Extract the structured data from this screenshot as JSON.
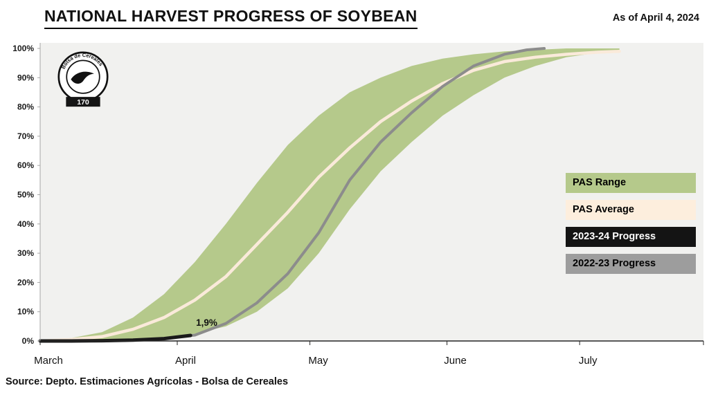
{
  "header": {
    "title": "NATIONAL HARVEST PROGRESS OF SOYBEAN",
    "as_of": "As of April 4, 2024"
  },
  "footer": {
    "source": "Source: Depto. Estimaciones Agrícolas - Bolsa de Cereales"
  },
  "logo": {
    "org": "Bolsa de Cereales",
    "anniversary": "170"
  },
  "chart_data": {
    "type": "line",
    "title": "NATIONAL HARVEST PROGRESS OF SOYBEAN",
    "x_axis": {
      "unit": "days_from_march_1",
      "range": [
        0,
        150
      ],
      "ticks": [
        {
          "day": 0,
          "label": "March"
        },
        {
          "day": 31,
          "label": "April"
        },
        {
          "day": 61,
          "label": "May"
        },
        {
          "day": 92,
          "label": "June"
        },
        {
          "day": 122,
          "label": "July"
        }
      ]
    },
    "y_axis": {
      "min": 0,
      "max": 100,
      "tick_step": 10,
      "format": "percent"
    },
    "colors": {
      "plot_background": "#f1f1ef",
      "range_green": "#b5c98b",
      "average_cream": "#faeada",
      "progress_2023_24": "#1a1a1a",
      "progress_2022_23": "#8c8c8c"
    },
    "series": [
      {
        "name": "PAS Range",
        "type": "band",
        "color": "#b5c98b",
        "x": [
          0,
          7,
          14,
          21,
          28,
          35,
          42,
          49,
          56,
          63,
          70,
          77,
          84,
          91,
          98,
          105,
          112,
          119,
          126,
          131
        ],
        "upper": [
          0,
          1,
          3,
          8,
          16,
          27,
          40,
          54,
          67,
          77,
          85,
          90,
          94,
          96.5,
          98,
          99,
          99.5,
          100,
          100,
          100
        ],
        "lower": [
          0,
          0,
          0,
          0.5,
          1,
          2.5,
          5,
          10,
          18,
          30,
          45,
          58,
          68,
          77,
          84,
          90,
          94,
          97,
          98.5,
          99
        ]
      },
      {
        "name": "PAS Average",
        "type": "line",
        "color": "#faeada",
        "width": 4.5,
        "x": [
          0,
          7,
          14,
          21,
          28,
          35,
          42,
          49,
          56,
          63,
          70,
          77,
          84,
          91,
          98,
          105,
          112,
          119,
          126,
          131
        ],
        "y": [
          0,
          0.5,
          1.5,
          4,
          8,
          14,
          22,
          33,
          44,
          56,
          66,
          75,
          82,
          88,
          92.5,
          95.5,
          97,
          98,
          98.7,
          99
        ]
      },
      {
        "name": "2022-23 Progress",
        "type": "line",
        "color": "#8c8c8c",
        "width": 4,
        "x": [
          0,
          7,
          14,
          21,
          28,
          35,
          42,
          49,
          56,
          63,
          70,
          77,
          84,
          91,
          98,
          105,
          110,
          114
        ],
        "y": [
          0,
          0,
          0,
          0.3,
          0.8,
          2,
          6,
          13,
          23,
          37,
          55,
          68,
          78,
          87,
          94,
          98,
          99.5,
          100
        ]
      },
      {
        "name": "2023-24 Progress",
        "type": "line",
        "color": "#1a1a1a",
        "width": 5,
        "x": [
          0,
          7,
          14,
          21,
          28,
          34
        ],
        "y": [
          0,
          0,
          0.1,
          0.3,
          0.8,
          1.9
        ]
      }
    ],
    "annotation": {
      "text": "1,9%",
      "day": 34,
      "value": 1.9
    },
    "legend": [
      {
        "label": "PAS Range",
        "color": "#b5c98b",
        "text_color": "#000000"
      },
      {
        "label": "PAS Average",
        "color": "#fdeedd",
        "text_color": "#000000"
      },
      {
        "label": "2023-24 Progress",
        "color": "#141414",
        "text_color": "#ffffff"
      },
      {
        "label": "2022-23 Progress",
        "color": "#9d9d9d",
        "text_color": "#000000"
      }
    ]
  }
}
